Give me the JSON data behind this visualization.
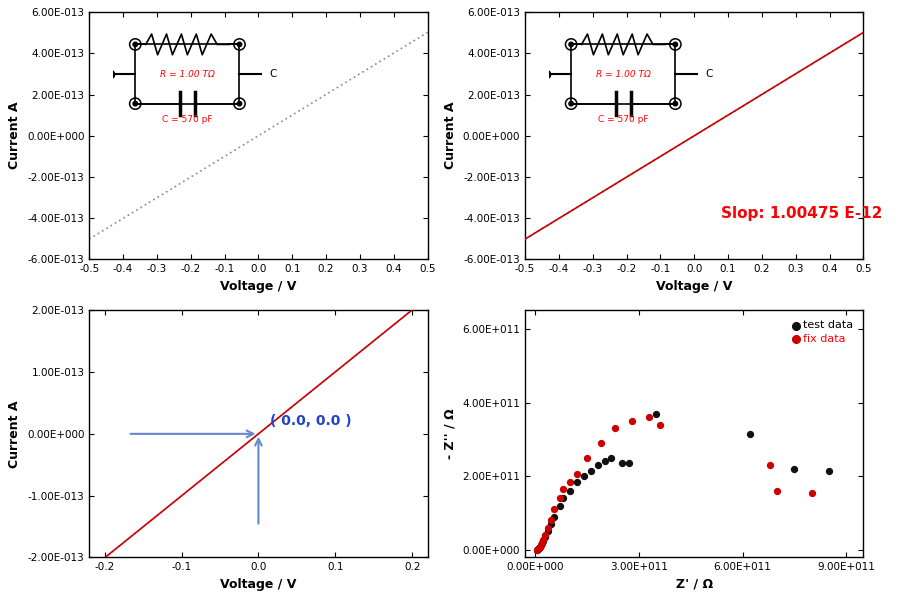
{
  "top_left": {
    "xlabel": "Voltage / V",
    "ylabel": "Current A",
    "xlim": [
      -0.5,
      0.5
    ],
    "ylim": [
      -6e-13,
      6e-13
    ],
    "xticks": [
      -0.5,
      -0.4,
      -0.3,
      -0.2,
      -0.1,
      0.0,
      0.1,
      0.2,
      0.3,
      0.4,
      0.5
    ],
    "yticks": [
      -6e-13,
      -4e-13,
      -2e-13,
      0,
      2e-13,
      4e-13,
      6e-13
    ],
    "ytick_labels": [
      "-6.00E-013",
      "-4.00E-013",
      "-2.00E-013",
      "0.00E+000",
      "2.00E-013",
      "4.00E-013",
      "6.00E-013"
    ],
    "xtick_labels": [
      "-0.5",
      "-0.4",
      "-0.3",
      "-0.2",
      "-0.1",
      "0.0",
      "0.1",
      "0.2",
      "0.3",
      "0.4",
      "0.5"
    ],
    "line_color": "#888888",
    "circuit_text_R": "R = 1.00 TΩ",
    "circuit_text_C": "C = 570 pF"
  },
  "top_right": {
    "xlabel": "Voltage / V",
    "ylabel": "Current A",
    "xlim": [
      -0.5,
      0.5
    ],
    "ylim": [
      -6e-13,
      6e-13
    ],
    "xticks": [
      -0.5,
      -0.4,
      -0.3,
      -0.2,
      -0.1,
      0.0,
      0.1,
      0.2,
      0.3,
      0.4,
      0.5
    ],
    "yticks": [
      -6e-13,
      -4e-13,
      -2e-13,
      0,
      2e-13,
      4e-13,
      6e-13
    ],
    "ytick_labels": [
      "-6.00E-013",
      "-4.00E-013",
      "-2.00E-013",
      "0.00E+000",
      "2.00E-013",
      "4.00E-013",
      "6.00E-013"
    ],
    "xtick_labels": [
      "-0.5",
      "-0.4",
      "-0.3",
      "-0.2",
      "-0.1",
      "0.0",
      "0.1",
      "0.2",
      "0.3",
      "0.4",
      "0.5"
    ],
    "line_color_data": "#888888",
    "line_color_fit": "#cc0000",
    "slope_text": "Slop: 1.00475 E-12",
    "circuit_text_R": "R = 1.00 TΩ",
    "circuit_text_C": "C = 570 pF"
  },
  "bottom_left": {
    "xlabel": "Voltage / V",
    "ylabel": "Current A",
    "xlim": [
      -0.22,
      0.22
    ],
    "ylim": [
      -2e-13,
      2e-13
    ],
    "xticks": [
      -0.2,
      -0.1,
      0.0,
      0.1,
      0.2
    ],
    "yticks": [
      -2e-13,
      -1e-13,
      0,
      1e-13,
      2e-13
    ],
    "ytick_labels": [
      "-2.00E-013",
      "-1.00E-013",
      "0.00E+000",
      "1.00E-013",
      "2.00E-013"
    ],
    "xtick_labels": [
      "-0.2",
      "-0.1",
      "0.0",
      "0.1",
      "0.2"
    ],
    "line_color_data": "#888888",
    "line_color_fit": "#cc0000",
    "arrow_text": "( 0.0, 0.0 )"
  },
  "bottom_right": {
    "xlabel": "Z' / Ω",
    "ylabel": "- Z'' / Ω",
    "xlim": [
      -30000000000.0,
      950000000000.0
    ],
    "ylim": [
      -20000000000.0,
      650000000000.0
    ],
    "xticks": [
      0,
      300000000000.0,
      600000000000.0,
      900000000000.0
    ],
    "yticks": [
      0,
      200000000000.0,
      400000000000.0,
      600000000000.0
    ],
    "xtick_labels": [
      "0.00E+000",
      "3.00E+011",
      "6.00E+011",
      "9.00E+011"
    ],
    "ytick_labels": [
      "0.00E+000",
      "2.00E+011",
      "4.00E+011",
      "6.00E+011"
    ],
    "test_data_x": [
      5000000000.0,
      8000000000.0,
      10000000000.0,
      12000000000.0,
      15000000000.0,
      18000000000.0,
      22000000000.0,
      28000000000.0,
      35000000000.0,
      45000000000.0,
      55000000000.0,
      70000000000.0,
      80000000000.0,
      100000000000.0,
      120000000000.0,
      140000000000.0,
      160000000000.0,
      180000000000.0,
      200000000000.0,
      220000000000.0,
      250000000000.0,
      270000000000.0,
      350000000000.0,
      620000000000.0,
      750000000000.0,
      850000000000.0
    ],
    "test_data_y": [
      1000000000.0,
      3000000000.0,
      5000000000.0,
      8000000000.0,
      12000000000.0,
      18000000000.0,
      25000000000.0,
      35000000000.0,
      50000000000.0,
      70000000000.0,
      90000000000.0,
      120000000000.0,
      140000000000.0,
      160000000000.0,
      185000000000.0,
      200000000000.0,
      215000000000.0,
      230000000000.0,
      240000000000.0,
      250000000000.0,
      235000000000.0,
      235000000000.0,
      370000000000.0,
      315000000000.0,
      220000000000.0,
      215000000000.0
    ],
    "fix_data_x": [
      5000000000.0,
      8000000000.0,
      10000000000.0,
      12000000000.0,
      15000000000.0,
      18000000000.0,
      22000000000.0,
      28000000000.0,
      35000000000.0,
      45000000000.0,
      55000000000.0,
      70000000000.0,
      80000000000.0,
      100000000000.0,
      120000000000.0,
      150000000000.0,
      190000000000.0,
      230000000000.0,
      280000000000.0,
      330000000000.0,
      360000000000.0,
      680000000000.0,
      700000000000.0,
      800000000000.0
    ],
    "fix_data_y": [
      1000000000.0,
      3000000000.0,
      5000000000.0,
      8000000000.0,
      12000000000.0,
      18000000000.0,
      28000000000.0,
      40000000000.0,
      60000000000.0,
      80000000000.0,
      110000000000.0,
      140000000000.0,
      165000000000.0,
      185000000000.0,
      205000000000.0,
      250000000000.0,
      290000000000.0,
      330000000000.0,
      350000000000.0,
      360000000000.0,
      340000000000.0,
      230000000000.0,
      160000000000.0,
      155000000000.0
    ],
    "test_color": "#111111",
    "fix_color": "#cc0000"
  }
}
